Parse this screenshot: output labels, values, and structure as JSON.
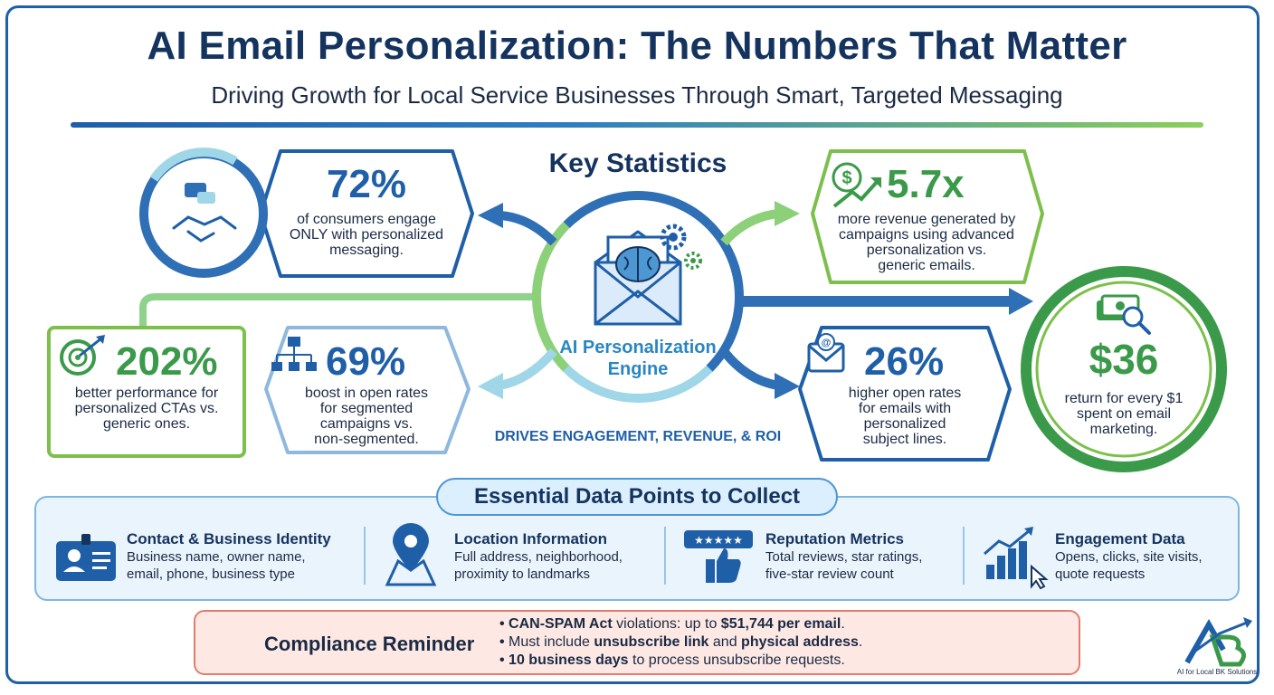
{
  "header": {
    "title": "AI Email Personalization: The Numbers That Matter",
    "subtitle": "Driving Growth for Local Service Businesses Through Smart, Targeted Messaging"
  },
  "key_statistics": {
    "title": "Key Statistics",
    "engine_line1": "AI Personalization",
    "engine_line2": "Engine",
    "tagline": "DRIVES ENGAGEMENT, REVENUE, & ROI",
    "stats": [
      {
        "value": "72%",
        "line1": "of consumers engage",
        "line2": "ONLY with personalized",
        "line3": "messaging.",
        "icon": "handshake-icon"
      },
      {
        "value": "5.7x",
        "line1": "more revenue generated by",
        "line2": "campaigns using advanced",
        "line3": "personalization vs.",
        "line4": "generic emails.",
        "icon": "dollar-growth-icon"
      },
      {
        "value": "202%",
        "line1": "better performance for",
        "line2": "personalized CTAs vs.",
        "line3": "generic ones.",
        "icon": "target-icon"
      },
      {
        "value": "69%",
        "line1": "boost in open rates",
        "line2": "for segmented",
        "line3": "campaigns vs.",
        "line4": "non-segmented.",
        "icon": "org-chart-icon"
      },
      {
        "value": "26%",
        "line1": "higher open rates",
        "line2": "for emails with",
        "line3": "personalized",
        "line4": "subject lines.",
        "icon": "email-at-icon"
      },
      {
        "value": "$36",
        "line1": "return for every $1",
        "line2": "spent on email",
        "line3": "marketing.",
        "icon": "money-search-icon"
      }
    ]
  },
  "data_points": {
    "title": "Essential Data Points to Collect",
    "items": [
      {
        "title": "Contact & Business Identity",
        "line1": "Business name, owner name,",
        "line2": "email, phone, business type",
        "icon": "id-card-icon"
      },
      {
        "title": "Location Information",
        "line1": "Full address, neighborhood,",
        "line2": "proximity to landmarks",
        "icon": "map-pin-icon"
      },
      {
        "title": "Reputation Metrics",
        "line1": "Total reviews, star ratings,",
        "line2": "five-star review count",
        "icon": "thumbs-up-stars-icon",
        "stars": "★★★★★"
      },
      {
        "title": "Engagement Data",
        "line1": "Opens, clicks, site visits,",
        "line2": "quote requests",
        "icon": "bar-chart-cursor-icon"
      }
    ]
  },
  "compliance": {
    "title": "Compliance Reminder",
    "item1_bold": "CAN-SPAM Act",
    "item1_mid": " violations: up to ",
    "item1_bold2": "$51,744 per email",
    "item1_end": ".",
    "item2_start": "Must include ",
    "item2_bold": "unsubscribe link",
    "item2_mid": " and ",
    "item2_bold2": "physical address",
    "item2_end": ".",
    "item3_bold": "10 business days",
    "item3_end": " to process unsubscribe requests."
  },
  "logo": {
    "mark": "AB",
    "caption": "AI for Local BK Solutions"
  },
  "colors": {
    "navy": "#14335e",
    "blue": "#1f5fa8",
    "light_blue": "#7fb6e0",
    "green": "#7cc04b",
    "dark_green": "#3a9a4a",
    "alert_red": "#d9453a"
  }
}
